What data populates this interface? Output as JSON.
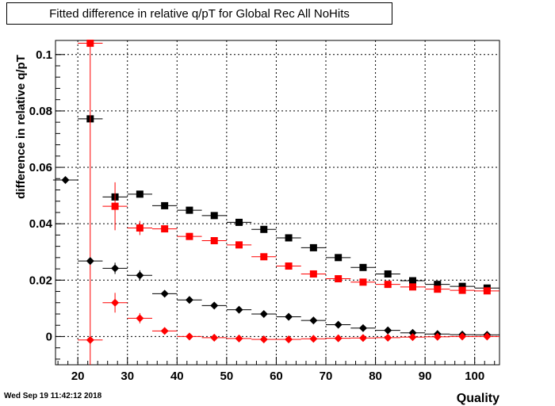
{
  "title": "Fitted difference in relative q/pT for Global Rec All NoHits",
  "timestamp": "Wed Sep 19 11:42:12 2018",
  "chart_data": {
    "type": "scatter",
    "xlabel": "Quality",
    "ylabel": "difference in relative q/pT",
    "xlim": [
      15.5,
      105
    ],
    "ylim": [
      -0.01,
      0.105
    ],
    "x_ticks": [
      20,
      30,
      40,
      50,
      60,
      70,
      80,
      90,
      100
    ],
    "y_ticks": [
      0,
      0.02,
      0.04,
      0.06,
      0.08,
      0.1
    ],
    "y_tick_labels": [
      "0",
      "0.02",
      "0.04",
      "0.06",
      "0.08",
      "0.1"
    ],
    "grid": true,
    "legend": "none",
    "series": [
      {
        "marker": "square",
        "color": "#000000",
        "points": [
          {
            "x": 22.5,
            "y": 0.0772,
            "err": 0.0
          },
          {
            "x": 27.5,
            "y": 0.0495,
            "err": 0.001
          },
          {
            "x": 32.5,
            "y": 0.0505,
            "err": 0.001
          },
          {
            "x": 37.5,
            "y": 0.0464,
            "err": 0.0
          },
          {
            "x": 42.5,
            "y": 0.0448,
            "err": 0.0
          },
          {
            "x": 47.5,
            "y": 0.0429,
            "err": 0.0
          },
          {
            "x": 52.5,
            "y": 0.0405,
            "err": 0.0
          },
          {
            "x": 57.5,
            "y": 0.038,
            "err": 0.0
          },
          {
            "x": 62.5,
            "y": 0.035,
            "err": 0.0
          },
          {
            "x": 67.5,
            "y": 0.0315,
            "err": 0.0
          },
          {
            "x": 72.5,
            "y": 0.028,
            "err": 0.0
          },
          {
            "x": 77.5,
            "y": 0.0245,
            "err": 0.0
          },
          {
            "x": 82.5,
            "y": 0.0222,
            "err": 0.0
          },
          {
            "x": 87.5,
            "y": 0.0198,
            "err": 0.0
          },
          {
            "x": 92.5,
            "y": 0.0185,
            "err": 0.0
          },
          {
            "x": 97.5,
            "y": 0.0178,
            "err": 0.0
          },
          {
            "x": 102.5,
            "y": 0.0172,
            "err": 0.0
          }
        ]
      },
      {
        "marker": "square",
        "color": "#ff0000",
        "points": [
          {
            "x": 22.5,
            "y": 0.104,
            "err": 0.115
          },
          {
            "x": 27.5,
            "y": 0.0462,
            "err": 0.0085
          },
          {
            "x": 32.5,
            "y": 0.0385,
            "err": 0.0025
          },
          {
            "x": 37.5,
            "y": 0.0382,
            "err": 0.0008
          },
          {
            "x": 42.5,
            "y": 0.0355,
            "err": 0.0
          },
          {
            "x": 47.5,
            "y": 0.034,
            "err": 0.0
          },
          {
            "x": 52.5,
            "y": 0.0325,
            "err": 0.0
          },
          {
            "x": 57.5,
            "y": 0.0283,
            "err": 0.0
          },
          {
            "x": 62.5,
            "y": 0.025,
            "err": 0.0
          },
          {
            "x": 67.5,
            "y": 0.0222,
            "err": 0.0
          },
          {
            "x": 72.5,
            "y": 0.0205,
            "err": 0.0
          },
          {
            "x": 77.5,
            "y": 0.0193,
            "err": 0.0
          },
          {
            "x": 82.5,
            "y": 0.0185,
            "err": 0.0
          },
          {
            "x": 87.5,
            "y": 0.0176,
            "err": 0.0
          },
          {
            "x": 92.5,
            "y": 0.0168,
            "err": 0.0
          },
          {
            "x": 97.5,
            "y": 0.0164,
            "err": 0.0
          },
          {
            "x": 102.5,
            "y": 0.0162,
            "err": 0.0
          }
        ]
      },
      {
        "marker": "diamond",
        "color": "#000000",
        "points": [
          {
            "x": 17.5,
            "y": 0.0555,
            "err": 0.0
          },
          {
            "x": 22.5,
            "y": 0.0268,
            "err": 0.0
          },
          {
            "x": 27.5,
            "y": 0.0242,
            "err": 0.002
          },
          {
            "x": 32.5,
            "y": 0.0217,
            "err": 0.0018
          },
          {
            "x": 37.5,
            "y": 0.0152,
            "err": 0.0
          },
          {
            "x": 42.5,
            "y": 0.013,
            "err": 0.0
          },
          {
            "x": 47.5,
            "y": 0.011,
            "err": 0.0
          },
          {
            "x": 52.5,
            "y": 0.0095,
            "err": 0.0
          },
          {
            "x": 57.5,
            "y": 0.008,
            "err": 0.0
          },
          {
            "x": 62.5,
            "y": 0.007,
            "err": 0.0
          },
          {
            "x": 67.5,
            "y": 0.0057,
            "err": 0.0
          },
          {
            "x": 72.5,
            "y": 0.0042,
            "err": 0.0
          },
          {
            "x": 77.5,
            "y": 0.003,
            "err": 0.0
          },
          {
            "x": 82.5,
            "y": 0.0022,
            "err": 0.0
          },
          {
            "x": 87.5,
            "y": 0.0013,
            "err": 0.0
          },
          {
            "x": 92.5,
            "y": 0.0009,
            "err": 0.0
          },
          {
            "x": 97.5,
            "y": 0.0007,
            "err": 0.0
          },
          {
            "x": 102.5,
            "y": 0.0006,
            "err": 0.0
          }
        ]
      },
      {
        "marker": "diamond",
        "color": "#ff0000",
        "points": [
          {
            "x": 22.5,
            "y": -0.0012,
            "err": 0.0
          },
          {
            "x": 27.5,
            "y": 0.012,
            "err": 0.0035
          },
          {
            "x": 32.5,
            "y": 0.0065,
            "err": 0.0018
          },
          {
            "x": 37.5,
            "y": 0.002,
            "err": 0.0008
          },
          {
            "x": 42.5,
            "y": 0.0,
            "err": 0.0
          },
          {
            "x": 47.5,
            "y": -0.0004,
            "err": 0.0
          },
          {
            "x": 52.5,
            "y": -0.0007,
            "err": 0.0
          },
          {
            "x": 57.5,
            "y": -0.001,
            "err": 0.0
          },
          {
            "x": 62.5,
            "y": -0.001,
            "err": 0.0
          },
          {
            "x": 67.5,
            "y": -0.0008,
            "err": 0.0
          },
          {
            "x": 72.5,
            "y": -0.0006,
            "err": 0.0
          },
          {
            "x": 77.5,
            "y": -0.0005,
            "err": 0.0
          },
          {
            "x": 82.5,
            "y": -0.0004,
            "err": 0.0
          },
          {
            "x": 87.5,
            "y": -0.0002,
            "err": 0.0
          },
          {
            "x": 92.5,
            "y": -0.0001,
            "err": 0.0
          },
          {
            "x": 97.5,
            "y": 0.0,
            "err": 0.0
          },
          {
            "x": 102.5,
            "y": 0.0,
            "err": 0.0
          }
        ]
      }
    ]
  }
}
